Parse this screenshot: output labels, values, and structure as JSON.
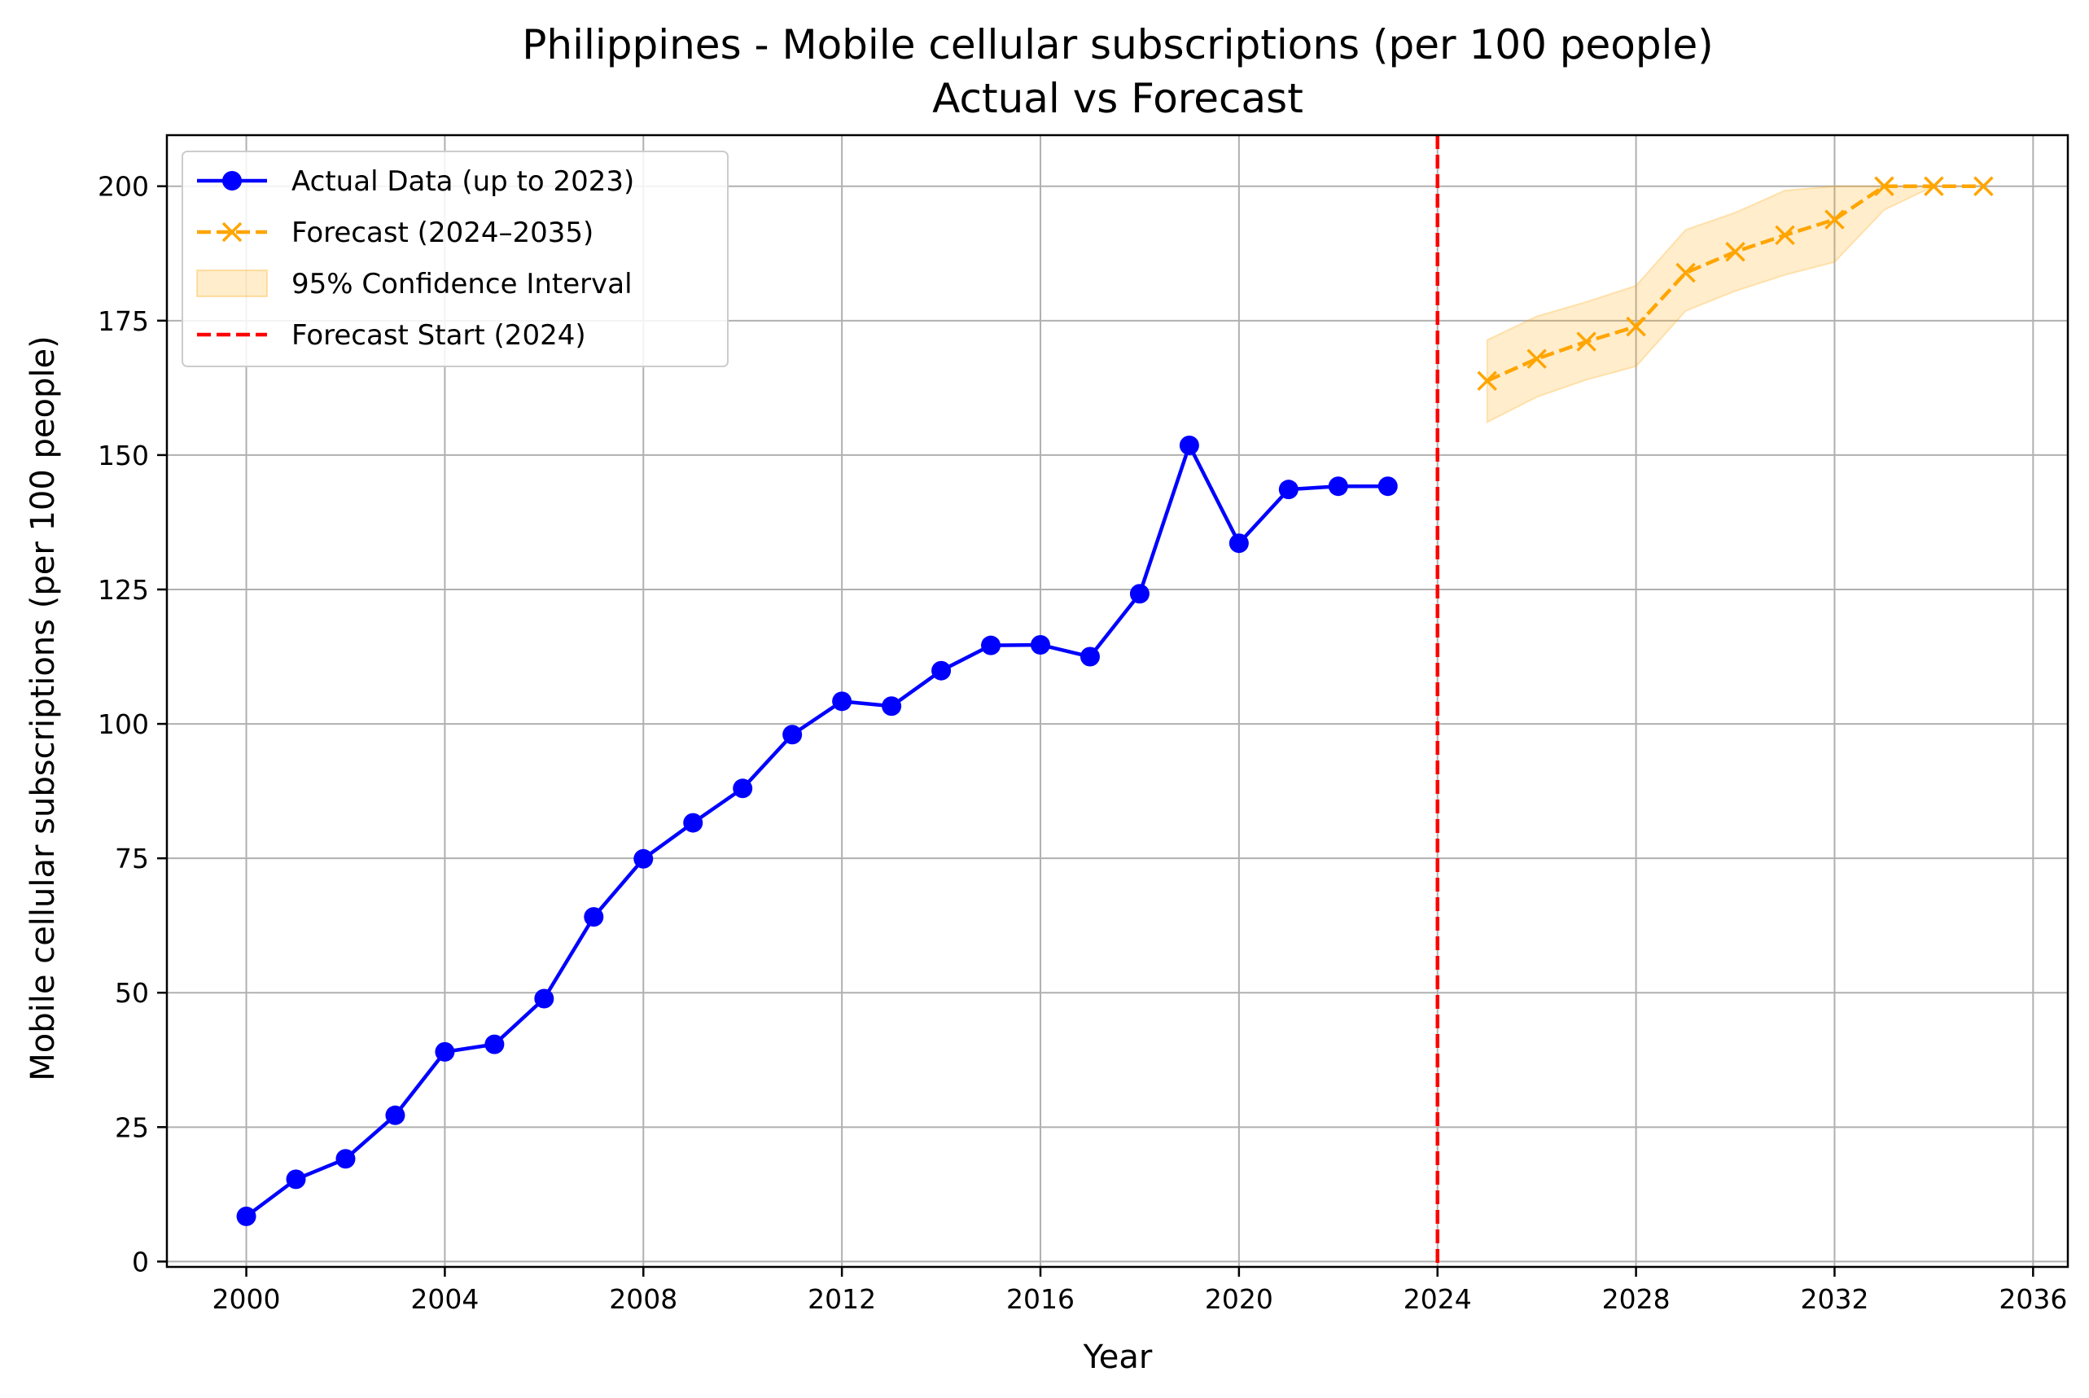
{
  "chart_data": {
    "type": "line",
    "title": "Philippines - Mobile cellular subscriptions (per 100 people)",
    "subtitle": "Actual vs Forecast",
    "xlabel": "Year",
    "ylabel": "Mobile cellular subscriptions (per 100 people)",
    "xlim": [
      1998.4,
      2036.7
    ],
    "ylim": [
      -1,
      209.5
    ],
    "x_ticks": [
      2000,
      2004,
      2008,
      2012,
      2016,
      2020,
      2024,
      2028,
      2032,
      2036
    ],
    "y_ticks": [
      0,
      25,
      50,
      75,
      100,
      125,
      150,
      175,
      200
    ],
    "grid": true,
    "legend_position": "top-left",
    "series": [
      {
        "name": "Actual Data (up to 2023)",
        "color": "#0000ff",
        "style": "solid",
        "marker": "circle",
        "x": [
          2000,
          2001,
          2002,
          2003,
          2004,
          2005,
          2006,
          2007,
          2008,
          2009,
          2010,
          2011,
          2012,
          2013,
          2014,
          2015,
          2016,
          2017,
          2018,
          2019,
          2020,
          2021,
          2022,
          2023
        ],
        "values": [
          8.4,
          15.3,
          19.1,
          27.2,
          39.0,
          40.4,
          48.9,
          64.1,
          74.9,
          81.6,
          88.0,
          98.0,
          104.2,
          103.3,
          109.9,
          114.6,
          114.7,
          112.5,
          124.2,
          151.8,
          133.6,
          143.6,
          144.2,
          144.2
        ]
      },
      {
        "name": "Forecast (2024–2035)",
        "color": "#ffa500",
        "style": "dashed",
        "marker": "x",
        "x": [
          2025,
          2026,
          2027,
          2028,
          2029,
          2030,
          2031,
          2032,
          2033,
          2034,
          2035
        ],
        "values": [
          163.8,
          167.9,
          171.1,
          173.9,
          183.9,
          187.8,
          190.9,
          193.8,
          200.0,
          200.0,
          200.0
        ]
      }
    ],
    "confidence_interval": {
      "name": "95% Confidence Interval",
      "color": "#ffa500",
      "x": [
        2025,
        2026,
        2027,
        2028,
        2029,
        2030,
        2031,
        2032,
        2033,
        2034,
        2035
      ],
      "lower": [
        156.1,
        160.8,
        164.0,
        166.5,
        176.8,
        180.5,
        183.5,
        185.9,
        195.6,
        200.0,
        200.0
      ],
      "upper": [
        171.4,
        175.8,
        178.5,
        181.5,
        191.9,
        195.1,
        199.2,
        200.0,
        200.0,
        200.0,
        200.0
      ]
    },
    "forecast_start": {
      "name": "Forecast Start (2024)",
      "x": 2024,
      "color": "#ff0000",
      "style": "dashed"
    }
  }
}
